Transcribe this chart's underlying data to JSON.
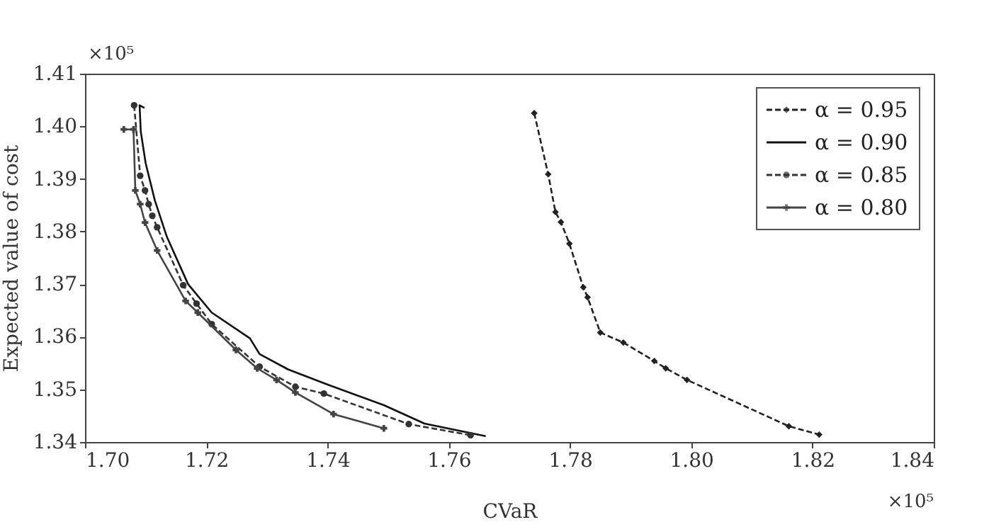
{
  "chart_data": {
    "type": "line",
    "xlabel": "CVaR",
    "ylabel": "Expected value of cost",
    "annotations": [
      "×10⁵",
      "×10⁵"
    ],
    "xlim": [
      1.7,
      1.84
    ],
    "ylim": [
      1.34,
      1.41
    ],
    "xticks": [
      {
        "value": 1.7,
        "label": "1.70"
      },
      1.72,
      1.74,
      1.76,
      1.78,
      {
        "value": 1.8,
        "label": "1.80"
      },
      1.82,
      1.84
    ],
    "yticks": [
      1.34,
      1.35,
      1.36,
      1.37,
      1.38,
      1.39,
      {
        "value": 1.4,
        "label": "1.40"
      },
      1.41
    ],
    "grid": false,
    "legend": "top right",
    "series": [
      {
        "name": "α = 0.95",
        "color": "#222222",
        "line_style": "dashed",
        "marker": "diamond",
        "x": [
          1.7741,
          1.7764,
          1.7776,
          1.7785,
          1.7799,
          1.7822,
          1.7829,
          1.785,
          1.7888,
          1.7939,
          1.7958,
          1.7993,
          1.8161,
          1.8211
        ],
        "values": [
          1.4025,
          1.3909,
          1.3837,
          1.3818,
          1.3777,
          1.3694,
          1.3675,
          1.3608,
          1.3589,
          1.3554,
          1.354,
          1.3518,
          1.343,
          1.3414
        ]
      },
      {
        "name": "α = 0.90",
        "color": "#111111",
        "line_style": "solid",
        "marker": "none",
        "x": [
          1.7098,
          1.709,
          1.7092,
          1.71,
          1.7115,
          1.7135,
          1.717,
          1.7209,
          1.7272,
          1.7288,
          1.7335,
          1.7398,
          1.7493,
          1.756,
          1.7661
        ],
        "values": [
          1.4035,
          1.404,
          1.399,
          1.393,
          1.386,
          1.379,
          1.37,
          1.3646,
          1.3597,
          1.3567,
          1.3538,
          1.351,
          1.347,
          1.3435,
          1.3411
        ]
      },
      {
        "name": "α = 0.85",
        "color": "#333333",
        "line_style": "dashed",
        "marker": "circle",
        "x": [
          1.7081,
          1.7082,
          1.7091,
          1.7099,
          1.7105,
          1.7111,
          1.7119,
          1.7162,
          1.7184,
          1.7209,
          1.7253,
          1.7288,
          1.7347,
          1.7394,
          1.7534,
          1.7636
        ],
        "values": [
          1.404,
          null,
          1.3906,
          1.3878,
          1.3852,
          1.383,
          1.3808,
          1.3698,
          1.3663,
          1.3624,
          null,
          1.3543,
          1.3505,
          1.3492,
          1.3434,
          1.3413
        ]
      },
      {
        "name": "α = 0.80",
        "color": "#444444",
        "line_style": "solid",
        "marker": "cross",
        "x": [
          1.7064,
          1.708,
          1.7083,
          1.7091,
          1.7099,
          1.7119,
          1.7166,
          1.7186,
          1.7249,
          1.7284,
          1.7316,
          1.7347,
          1.741,
          1.7493
        ],
        "values": [
          1.3994,
          1.3994,
          1.3878,
          1.3852,
          1.3817,
          1.3764,
          1.3668,
          1.3646,
          1.3575,
          1.354,
          1.3518,
          1.3494,
          1.3453,
          1.3426
        ]
      }
    ]
  }
}
